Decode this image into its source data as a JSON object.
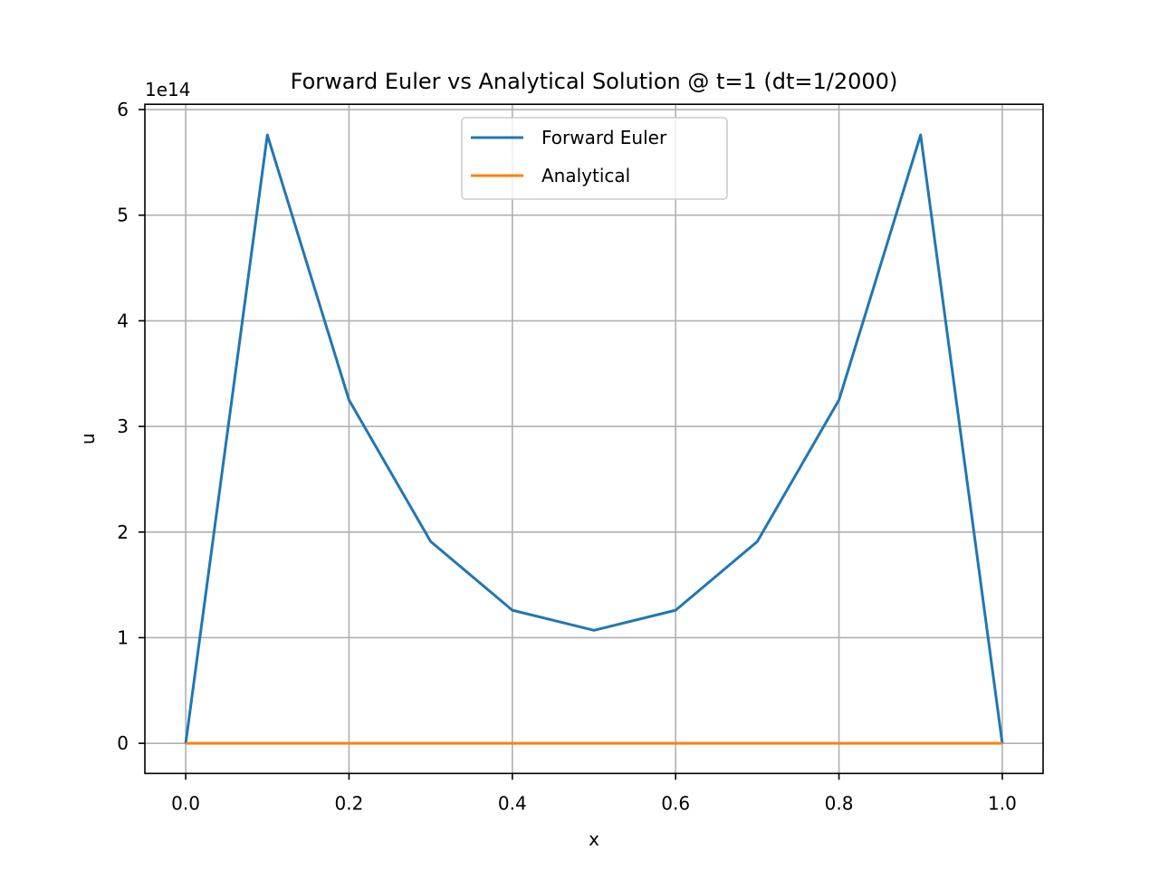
{
  "chart_data": {
    "type": "line",
    "title": "Forward Euler vs Analytical Solution @ t=1 (dt=1/2000)",
    "xlabel": "x",
    "ylabel": "u",
    "y_offset_text": "1e14",
    "xlim": [
      -0.05,
      1.05
    ],
    "ylim": [
      -0.285,
      6.05
    ],
    "x_ticks": [
      0.0,
      0.2,
      0.4,
      0.6,
      0.8,
      1.0
    ],
    "x_tick_labels": [
      "0.0",
      "0.2",
      "0.4",
      "0.6",
      "0.8",
      "1.0"
    ],
    "y_ticks": [
      0,
      1,
      2,
      3,
      4,
      5,
      6
    ],
    "y_tick_labels": [
      "0",
      "1",
      "2",
      "3",
      "4",
      "5",
      "6"
    ],
    "grid": true,
    "legend_position": "upper center",
    "x": [
      0.0,
      0.1,
      0.2,
      0.3,
      0.4,
      0.5,
      0.6,
      0.7,
      0.8,
      0.9,
      1.0
    ],
    "series": [
      {
        "name": "Forward Euler",
        "color": "#1f77b4",
        "values": [
          0.0,
          5.76,
          3.25,
          1.91,
          1.26,
          1.07,
          1.26,
          1.91,
          3.25,
          5.76,
          0.0
        ]
      },
      {
        "name": "Analytical",
        "color": "#ff7f0e",
        "values": [
          0,
          0,
          0,
          0,
          0,
          0,
          0,
          0,
          0,
          0,
          0
        ]
      }
    ]
  }
}
